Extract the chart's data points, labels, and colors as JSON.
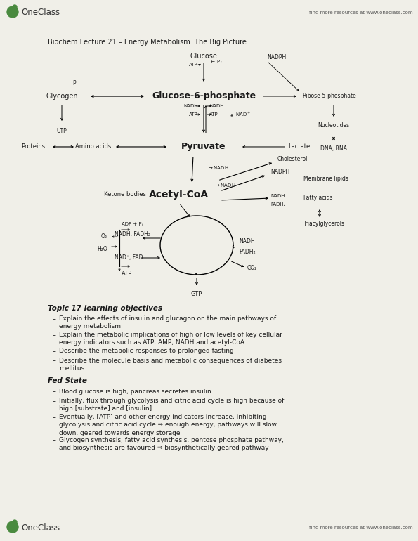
{
  "bg_color": "#f0efe8",
  "header_text": "find more resources at www.oneclass.com",
  "footer_text": "find more resources at www.oneclass.com",
  "diagram_title": "Biochem Lecture 21 – Energy Metabolism: The Big Picture",
  "topic_heading": "Topic 17 learning objectives",
  "fed_heading": "Fed State",
  "bullet_points_topic": [
    "Explain the effects of insulin and glucagon on the main pathways of\nenergy metabolism",
    "Explain the metabolic implications of high or low levels of key cellular\nenergy indicators such as ATP, AMP, NADH and acetyl-CoA",
    "Describe the metabolic responses to prolonged fasting",
    "Describe the molecule basis and metabolic consequences of diabetes\nmellitus"
  ],
  "bullet_points_fed": [
    "Blood glucose is high, pancreas secretes insulin",
    "Initially, flux through glycolysis and citric acid cycle is high because of\nhigh [substrate] and [insulin]",
    "Eventually, [ATP] and other energy indicators increase, inhibiting\nglycolysis and citric acid cycle ⇒ enough energy, pathways will slow\ndown, geared towards energy storage",
    "Glycogen synthesis, fatty acid synthesis, pentose phosphate pathway,\nand biosynthesis are favoured ⇒ biosynthetically geared pathway"
  ],
  "oneclass_green": "#4a8a3f",
  "text_color": "#1a1a1a",
  "gray_text": "#555555"
}
